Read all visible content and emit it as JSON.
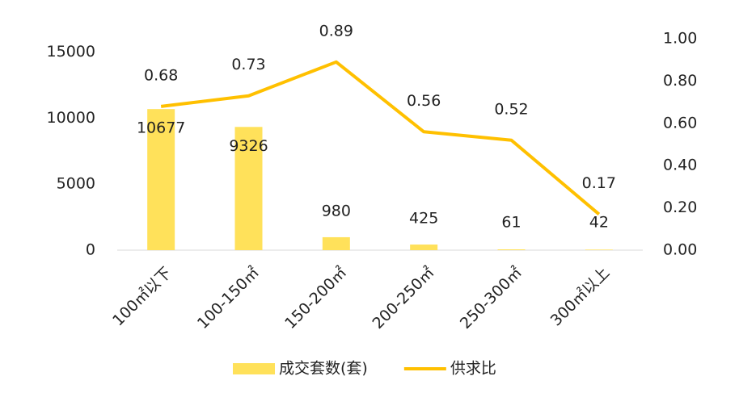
{
  "chart_data": {
    "type": "bar-line",
    "categories": [
      "100㎡以下",
      "100-150㎡",
      "150-200㎡",
      "200-250㎡",
      "250-300㎡",
      "300㎡以上"
    ],
    "series": [
      {
        "name": "成交套数(套)",
        "type": "bar",
        "color": "#ffe15a",
        "values": [
          10677,
          9326,
          980,
          425,
          61,
          42
        ]
      },
      {
        "name": "供求比",
        "type": "line",
        "axis": "y2",
        "color": "#ffc000",
        "values": [
          0.68,
          0.73,
          0.89,
          0.56,
          0.52,
          0.17
        ]
      }
    ],
    "ylim": [
      0,
      16000
    ],
    "yticks": [
      0,
      5000,
      10000,
      15000
    ],
    "y2lim": [
      0,
      1
    ],
    "y2ticks": [
      {
        "value": 0,
        "label": "0.00"
      },
      {
        "value": 0.2,
        "label": "0.20"
      },
      {
        "value": 0.4,
        "label": "0.40"
      },
      {
        "value": 0.6,
        "label": "0.60"
      },
      {
        "value": 0.8,
        "label": "0.80"
      },
      {
        "value": 1,
        "label": "1.00"
      }
    ],
    "grid": false,
    "legend": "bottom"
  }
}
